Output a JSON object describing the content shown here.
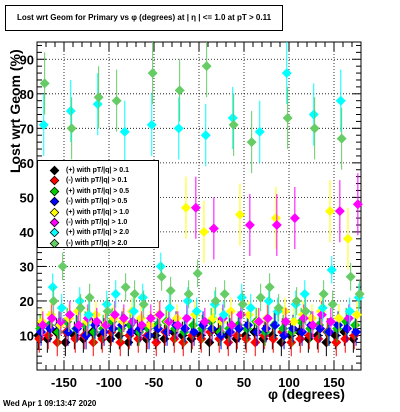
{
  "chart_data": {
    "type": "scatter",
    "title": "Lost wrt Geom for Primary vs φ (degrees) at | η | <= 1.0 at pT > 0.11",
    "xlabel": "φ (degrees)",
    "ylabel": "Lost wrt Geom (%)",
    "xlim": [
      -180,
      180
    ],
    "ylim": [
      0,
      95
    ],
    "x_ticks": [
      "-150",
      "-100",
      "-50",
      "0",
      "50",
      "100",
      "150"
    ],
    "x_tick_values": [
      -150,
      -100,
      -50,
      0,
      50,
      100,
      150
    ],
    "y_ticks": [
      "10",
      "20",
      "30",
      "40",
      "50",
      "60",
      "70",
      "80",
      "90"
    ],
    "y_tick_values": [
      10,
      20,
      30,
      40,
      50,
      60,
      70,
      80,
      90
    ],
    "grid": true,
    "legend_position": "middle-left",
    "series": [
      {
        "name": "(+) with pT/|q| > 0.1",
        "color": "#000000",
        "x": [
          -175,
          -165,
          -155,
          -145,
          -135,
          -125,
          -115,
          -105,
          -95,
          -85,
          -75,
          -65,
          -55,
          -45,
          -35,
          -25,
          -15,
          -5,
          5,
          15,
          25,
          35,
          45,
          55,
          65,
          75,
          85,
          95,
          105,
          115,
          125,
          135,
          145,
          155,
          165,
          175
        ],
        "y": [
          10,
          9,
          11,
          8,
          10,
          9,
          11,
          10,
          9,
          10,
          8,
          11,
          9,
          10,
          9,
          11,
          10,
          9,
          10,
          8,
          11,
          10,
          9,
          10,
          11,
          9,
          10,
          8,
          10,
          11,
          9,
          10,
          8,
          10,
          11,
          9
        ]
      },
      {
        "name": "(-) with pT/|q| > 0.1",
        "color": "#ff0000",
        "x": [
          -175,
          -165,
          -155,
          -145,
          -135,
          -125,
          -115,
          -105,
          -95,
          -85,
          -75,
          -65,
          -55,
          -45,
          -35,
          -25,
          -15,
          -5,
          5,
          15,
          25,
          35,
          45,
          55,
          65,
          75,
          85,
          95,
          105,
          115,
          125,
          135,
          145,
          155,
          165,
          175
        ],
        "y": [
          9,
          10,
          8,
          11,
          9,
          10,
          8,
          9,
          11,
          8,
          10,
          9,
          10,
          8,
          11,
          9,
          8,
          10,
          9,
          11,
          9,
          8,
          10,
          9,
          8,
          10,
          9,
          11,
          8,
          9,
          10,
          9,
          11,
          8,
          9,
          10
        ]
      },
      {
        "name": "(+) with pT/|q| > 0.5",
        "color": "#00cc00",
        "x": [
          -175,
          -165,
          -155,
          -145,
          -135,
          -125,
          -115,
          -105,
          -95,
          -85,
          -75,
          -65,
          -55,
          -45,
          -35,
          -25,
          -15,
          -5,
          5,
          15,
          25,
          35,
          45,
          55,
          65,
          75,
          85,
          95,
          105,
          115,
          125,
          135,
          145,
          155,
          165,
          175
        ],
        "y": [
          12,
          13,
          11,
          14,
          12,
          13,
          11,
          12,
          14,
          12,
          13,
          11,
          12,
          13,
          14,
          12,
          11,
          13,
          12,
          14,
          11,
          12,
          13,
          12,
          14,
          11,
          13,
          12,
          11,
          14,
          12,
          13,
          11,
          12,
          14,
          13
        ]
      },
      {
        "name": "(-) with pT/|q| > 0.5",
        "color": "#0000ff",
        "x": [
          -175,
          -165,
          -155,
          -145,
          -135,
          -125,
          -115,
          -105,
          -95,
          -85,
          -75,
          -65,
          -55,
          -45,
          -35,
          -25,
          -15,
          -5,
          5,
          15,
          25,
          35,
          45,
          55,
          65,
          75,
          85,
          95,
          105,
          115,
          125,
          135,
          145,
          155,
          165,
          175
        ],
        "y": [
          11,
          12,
          13,
          11,
          12,
          10,
          13,
          11,
          12,
          13,
          11,
          12,
          10,
          12,
          11,
          13,
          12,
          11,
          13,
          12,
          10,
          11,
          12,
          13,
          11,
          12,
          13,
          10,
          12,
          11,
          13,
          12,
          11,
          13,
          12,
          11
        ]
      },
      {
        "name": "(+) with pT/|q| > 1.0",
        "color": "#ffff00",
        "x": [
          -175,
          -165,
          -155,
          -145,
          -135,
          -125,
          -115,
          -105,
          -95,
          -85,
          -75,
          -65,
          -55,
          -45,
          -35,
          -25,
          -15,
          -5,
          5,
          15,
          25,
          35,
          45,
          55,
          65,
          75,
          85,
          95,
          105,
          115,
          125,
          135,
          145,
          155,
          165,
          175
        ],
        "y": [
          14,
          16,
          13,
          15,
          17,
          14,
          16,
          13,
          15,
          14,
          17,
          15,
          13,
          16,
          14,
          15,
          47,
          16,
          40,
          15,
          14,
          17,
          45,
          16,
          14,
          15,
          44,
          17,
          14,
          16,
          15,
          17,
          46,
          15,
          38,
          16
        ]
      },
      {
        "name": "(-) with pT/|q| > 1.0",
        "color": "#ff00ff",
        "x": [
          -175,
          -165,
          -155,
          -145,
          -135,
          -125,
          -115,
          -105,
          -95,
          -85,
          -75,
          -65,
          -55,
          -45,
          -35,
          -25,
          -15,
          -5,
          5,
          15,
          25,
          35,
          45,
          55,
          65,
          75,
          85,
          95,
          105,
          115,
          125,
          135,
          145,
          155,
          165,
          175
        ],
        "y": [
          13,
          15,
          14,
          16,
          13,
          15,
          14,
          13,
          16,
          15,
          14,
          13,
          15,
          16,
          14,
          13,
          15,
          47,
          14,
          41,
          15,
          13,
          16,
          42,
          14,
          15,
          42,
          14,
          44,
          15,
          13,
          16,
          14,
          46,
          15,
          48
        ]
      },
      {
        "name": "(+) with pT/|q| > 2.0",
        "color": "#00ffff",
        "x": [
          -175,
          -165,
          -155,
          -145,
          -135,
          -125,
          -115,
          -105,
          -95,
          -85,
          -75,
          -65,
          -55,
          -45,
          -35,
          -25,
          -15,
          -5,
          5,
          15,
          25,
          35,
          45,
          55,
          65,
          75,
          85,
          95,
          105,
          115,
          125,
          135,
          145,
          155,
          165,
          175
        ],
        "y": [
          71,
          24,
          18,
          75,
          20,
          16,
          77,
          19,
          22,
          69,
          17,
          21,
          71,
          30,
          18,
          70,
          20,
          17,
          68,
          19,
          16,
          73,
          21,
          18,
          69,
          20,
          17,
          86,
          19,
          22,
          74,
          18,
          29,
          78,
          17,
          21
        ]
      },
      {
        "name": "(-) with pT/|q| > 2.0",
        "color": "#66cc66",
        "x": [
          -175,
          -165,
          -155,
          -145,
          -135,
          -125,
          -115,
          -105,
          -95,
          -85,
          -75,
          -65,
          -55,
          -45,
          -35,
          -25,
          -15,
          -5,
          5,
          15,
          25,
          35,
          45,
          55,
          65,
          75,
          85,
          95,
          105,
          115,
          125,
          135,
          145,
          155,
          165,
          175
        ],
        "y": [
          83,
          20,
          30,
          70,
          18,
          21,
          79,
          17,
          78,
          24,
          22,
          19,
          86,
          27,
          23,
          81,
          22,
          28,
          88,
          20,
          22,
          71,
          19,
          66,
          21,
          24,
          18,
          73,
          20,
          17,
          70,
          22,
          19,
          67,
          27,
          22
        ]
      }
    ]
  },
  "footer": {
    "timestamp": "Wed Apr  1 09:13:47 2020"
  }
}
